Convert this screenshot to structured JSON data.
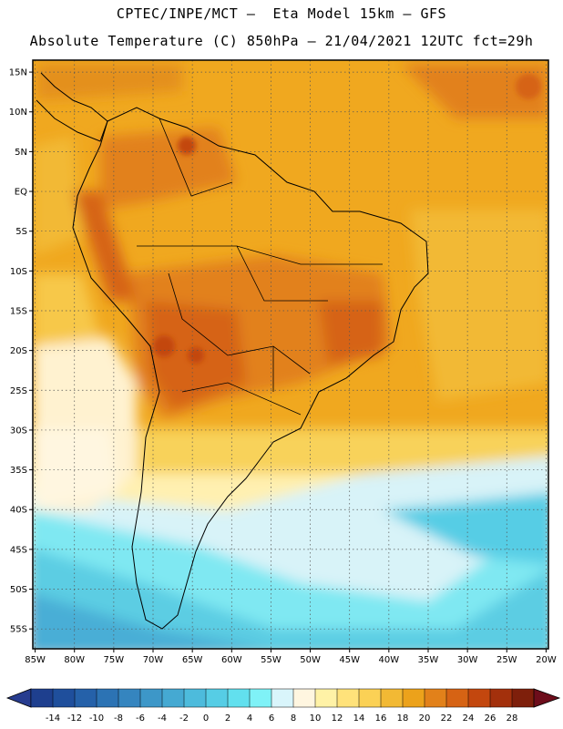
{
  "header": {
    "title_line1": "CPTEC/INPE/MCT –  Eta Model 15km – GFS",
    "title_line2": "Absolute Temperature (C) 850hPa – 21/04/2021 12UTC fct=29h"
  },
  "map": {
    "lat_labels": [
      "15N",
      "10N",
      "5N",
      "EQ",
      "5S",
      "10S",
      "15S",
      "20S",
      "25S",
      "30S",
      "35S",
      "40S",
      "45S",
      "50S",
      "55S"
    ],
    "lat_values": [
      15,
      10,
      5,
      0,
      -5,
      -10,
      -15,
      -20,
      -25,
      -30,
      -35,
      -40,
      -45,
      -50,
      -55
    ],
    "lon_labels": [
      "85W",
      "80W",
      "75W",
      "70W",
      "65W",
      "60W",
      "55W",
      "50W",
      "45W",
      "40W",
      "35W",
      "30W",
      "25W",
      "20W"
    ],
    "lon_values": [
      -85,
      -80,
      -75,
      -70,
      -65,
      -60,
      -55,
      -50,
      -45,
      -40,
      -35,
      -30,
      -25,
      -20
    ],
    "extent": {
      "lon_min": -85.3,
      "lon_max": -19.7,
      "lat_min": -57.5,
      "lat_max": 16.5
    },
    "gridlines": "dotted"
  },
  "colorbar": {
    "labels": [
      "-14",
      "-12",
      "-10",
      "-8",
      "-6",
      "-4",
      "-2",
      "0",
      "2",
      "4",
      "6",
      "8",
      "10",
      "12",
      "14",
      "16",
      "18",
      "20",
      "22",
      "24",
      "26",
      "28"
    ],
    "colors": [
      "#1e3f8e",
      "#1f4f9c",
      "#2561a9",
      "#2c73b4",
      "#3585bf",
      "#3d97c8",
      "#45a9d2",
      "#4dbbdc",
      "#56cde5",
      "#62e0ee",
      "#7ff2f7",
      "#d9f5fb",
      "#fff6e0",
      "#fff2a6",
      "#ffe27a",
      "#fbd155",
      "#f2b934",
      "#eca21b",
      "#e2811a",
      "#d66314",
      "#c3470e",
      "#a3300c",
      "#7e1f0b"
    ],
    "under_color": "#273c8f",
    "over_color": "#6d0d1b"
  }
}
